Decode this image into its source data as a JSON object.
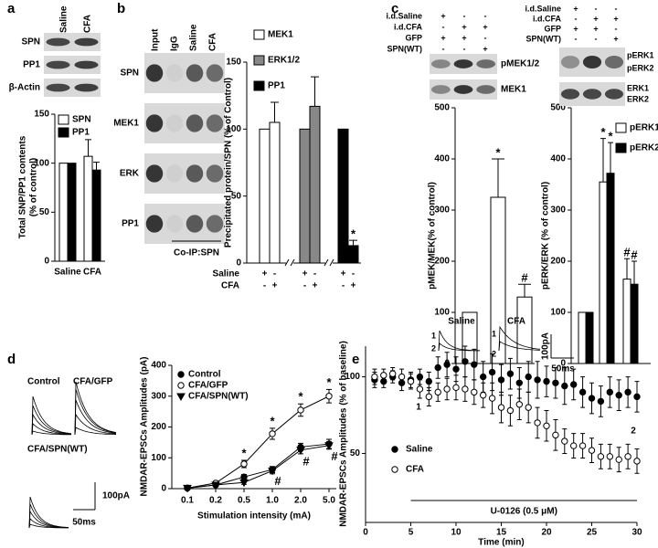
{
  "chart_data": [
    {
      "panel": "a",
      "type": "bar",
      "blot": {
        "columns": [
          "Saline",
          "CFA"
        ],
        "rows": [
          "SPN",
          "PP1",
          "β-Actin"
        ]
      },
      "ylabel": [
        "Total SNP/PP1 contents",
        "(% of control)"
      ],
      "categories": [
        "Saline",
        "CFA"
      ],
      "series": [
        {
          "name": "SPN",
          "color": "#ffffff",
          "values": [
            100,
            107
          ],
          "errors": [
            null,
            17
          ]
        },
        {
          "name": "PP1",
          "color": "#000000",
          "values": [
            100,
            93
          ],
          "errors": [
            null,
            8
          ]
        }
      ],
      "ylim": [
        0,
        150
      ],
      "yticks": [
        0,
        50,
        100,
        150
      ]
    },
    {
      "panel": "b",
      "type": "bar",
      "blot": {
        "columns": [
          "Input",
          "IgG",
          "Saline",
          "CFA"
        ],
        "rows": [
          "SPN",
          "MEK1",
          "ERK",
          "PP1"
        ],
        "caption": "Co-IP:SPN"
      },
      "ylabel": "Precipitated protein/SPN (% of Control)",
      "conditions": [
        {
          "name": "Saline",
          "signs": [
            "+",
            "-",
            "+",
            "-",
            "+",
            "-"
          ]
        },
        {
          "name": "CFA",
          "signs": [
            "-",
            "+",
            "-",
            "+",
            "-",
            "+"
          ]
        }
      ],
      "series": [
        {
          "name": "MEK1",
          "color": "#ffffff",
          "values": [
            100,
            105
          ],
          "errors": [
            null,
            15
          ]
        },
        {
          "name": "ERK1/2",
          "color": "#888888",
          "values": [
            100,
            117
          ],
          "errors": [
            null,
            22
          ]
        },
        {
          "name": "PP1",
          "color": "#000000",
          "values": [
            100,
            13
          ],
          "errors": [
            null,
            4
          ],
          "significance": [
            null,
            "*"
          ]
        }
      ],
      "ylim": [
        0,
        150
      ],
      "yticks": [
        0,
        50,
        100,
        150
      ]
    },
    {
      "panel": "c",
      "type": "bar",
      "conditions": [
        {
          "name": "i.d.Saline",
          "signs": [
            "+",
            "-",
            "-"
          ]
        },
        {
          "name": "i.d.CFA",
          "signs": [
            "-",
            "+",
            "+"
          ]
        },
        {
          "name": "GFP",
          "signs": [
            "+",
            "+",
            "-"
          ]
        },
        {
          "name": "SPN(WT)",
          "signs": [
            "-",
            "-",
            "+"
          ]
        }
      ],
      "blot": {
        "rows": [
          "pMEK1/2",
          "MEK1"
        ]
      },
      "ylabel": "pMEK/MEK(% of control)",
      "series": [
        {
          "color": "#ffffff",
          "values": [
            100,
            325,
            130
          ],
          "errors": [
            null,
            75,
            25
          ],
          "significance": [
            null,
            "*",
            "#"
          ]
        }
      ],
      "ylim": [
        0,
        500
      ],
      "yticks": [
        0,
        100,
        200,
        300,
        400,
        500
      ]
    },
    {
      "type": "bar",
      "conditions": [
        {
          "name": "i.d.Saline",
          "signs": [
            "+",
            "-",
            "-"
          ]
        },
        {
          "name": "i.d.CFA",
          "signs": [
            "-",
            "+",
            "+"
          ]
        },
        {
          "name": "GFP",
          "signs": [
            "+",
            "+",
            "-"
          ]
        },
        {
          "name": "SPN(WT)",
          "signs": [
            "-",
            "-",
            "+"
          ]
        }
      ],
      "blot": {
        "rows": [
          "pERK1",
          "pERK2",
          "ERK1",
          "ERK2"
        ]
      },
      "ylabel": "pERK/ERK (% of control)",
      "series": [
        {
          "name": "pERK1",
          "color": "#ffffff",
          "values": [
            100,
            355,
            165
          ],
          "errors": [
            null,
            85,
            40
          ],
          "significance": [
            null,
            "*",
            "#"
          ]
        },
        {
          "name": "pERK2",
          "color": "#000000",
          "values": [
            100,
            372,
            155
          ],
          "errors": [
            null,
            60,
            45
          ],
          "significance": [
            null,
            "*",
            "#"
          ]
        }
      ],
      "ylim": [
        0,
        500
      ],
      "yticks": [
        0,
        100,
        200,
        300,
        400,
        500
      ]
    },
    {
      "panel": "d",
      "type": "line",
      "traces": {
        "labels": [
          "Control",
          "CFA/GFP",
          "CFA/SPN(WT)"
        ],
        "scale": [
          "100pA",
          "50ms"
        ]
      },
      "xlabel": "Stimulation intensity (mA)",
      "ylabel": "NMDAR-EPSCs Amplitudes (pA)",
      "categories": [
        "0.1",
        "0.2",
        "0.5",
        "1.0",
        "2.0",
        "5.0"
      ],
      "series": [
        {
          "name": "Control",
          "color": "#000000",
          "marker": "circle",
          "fill": "#000000",
          "values": [
            2,
            12,
            38,
            62,
            135,
            145
          ],
          "errors": [
            3,
            4,
            8,
            10,
            12,
            15
          ]
        },
        {
          "name": "CFA/GFP",
          "color": "#000000",
          "marker": "circle",
          "fill": "#ffffff",
          "values": [
            2,
            18,
            80,
            178,
            255,
            300
          ],
          "errors": [
            3,
            5,
            12,
            18,
            20,
            22
          ],
          "significance": [
            null,
            null,
            "*",
            "*",
            "*",
            "*"
          ]
        },
        {
          "name": "CFA/SPN(WT)",
          "color": "#000000",
          "marker": "triangle",
          "fill": "#000000",
          "values": [
            2,
            12,
            20,
            58,
            125,
            140
          ],
          "errors": [
            3,
            4,
            6,
            10,
            12,
            12
          ],
          "significance": [
            null,
            null,
            null,
            "#",
            "#",
            "#"
          ]
        }
      ],
      "ylim": [
        0,
        400
      ],
      "yticks": [
        0,
        100,
        200,
        300,
        400
      ]
    },
    {
      "panel": "e",
      "type": "scatter",
      "traces": {
        "labels": [
          "Saline",
          "CFA"
        ],
        "scale": [
          "100pA",
          "50ms"
        ]
      },
      "time_points": [
        "1",
        "2"
      ],
      "treatment": {
        "label": "U-0126 (0.5 μM)",
        "range": [
          5,
          30
        ]
      },
      "xlabel": "Time (min)",
      "ylabel": "NMDAR-EPSCs Amplitudes (% of baseline)",
      "x": [
        1,
        2,
        3,
        4,
        5,
        6,
        7,
        8,
        9,
        10,
        11,
        12,
        13,
        14,
        15,
        16,
        17,
        18,
        19,
        20,
        21,
        22,
        23,
        24,
        25,
        26,
        27,
        28,
        29,
        30
      ],
      "series": [
        {
          "name": "Saline",
          "color": "#000000",
          "fill": "#000000",
          "values": [
            98,
            97,
            100,
            96,
            98,
            100,
            97,
            106,
            108,
            105,
            110,
            108,
            100,
            103,
            98,
            102,
            96,
            100,
            98,
            97,
            96,
            94,
            95,
            90,
            86,
            84,
            90,
            88,
            90,
            87
          ],
          "errors": [
            5,
            4,
            4,
            5,
            5,
            5,
            6,
            7,
            8,
            8,
            10,
            10,
            10,
            12,
            10,
            10,
            10,
            10,
            12,
            10,
            10,
            12,
            10,
            10,
            10,
            10,
            10,
            10,
            10,
            10
          ]
        },
        {
          "name": "CFA",
          "color": "#000000",
          "fill": "#ffffff",
          "values": [
            100,
            101,
            102,
            100,
            97,
            92,
            87,
            90,
            92,
            93,
            92,
            90,
            88,
            86,
            80,
            78,
            82,
            80,
            70,
            68,
            62,
            58,
            55,
            55,
            52,
            48,
            48,
            46,
            48,
            45
          ],
          "errors": [
            5,
            4,
            4,
            5,
            5,
            6,
            6,
            6,
            7,
            8,
            8,
            8,
            8,
            10,
            10,
            10,
            10,
            10,
            10,
            10,
            10,
            8,
            8,
            8,
            8,
            8,
            8,
            8,
            8,
            8
          ]
        }
      ],
      "xlim": [
        0,
        30
      ],
      "xticks": [
        0,
        5,
        10,
        15,
        20,
        25,
        30
      ],
      "ylim": [
        5,
        120
      ],
      "yticks": [
        50,
        100
      ]
    }
  ]
}
